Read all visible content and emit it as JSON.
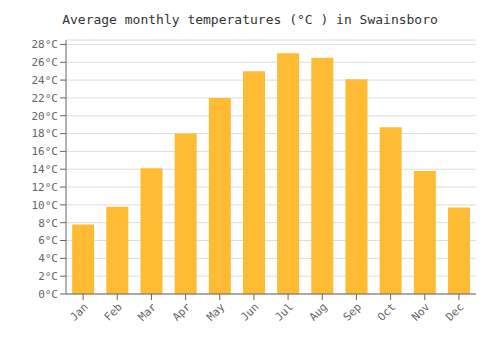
{
  "chart_data": {
    "type": "bar",
    "title": "Average monthly temperatures (°C ) in Swainsboro",
    "categories": [
      "Jan",
      "Feb",
      "Mar",
      "Apr",
      "May",
      "Jun",
      "Jul",
      "Aug",
      "Sep",
      "Oct",
      "Nov",
      "Dec"
    ],
    "values": [
      7.8,
      9.8,
      14.1,
      18.0,
      22.0,
      25.0,
      27.0,
      26.5,
      24.1,
      18.7,
      13.8,
      9.7
    ],
    "color": "#FFBB33",
    "ylim": [
      0,
      28.5
    ],
    "yticks": [
      {
        "value": 0,
        "label": "0°C"
      },
      {
        "value": 2,
        "label": "2°C"
      },
      {
        "value": 4,
        "label": "4°C"
      },
      {
        "value": 6,
        "label": "6°C"
      },
      {
        "value": 8,
        "label": "8°C"
      },
      {
        "value": 10,
        "label": "10°C"
      },
      {
        "value": 12,
        "label": "12°C"
      },
      {
        "value": 14,
        "label": "14°C"
      },
      {
        "value": 16,
        "label": "16°C"
      },
      {
        "value": 18,
        "label": "18°C"
      },
      {
        "value": 20,
        "label": "20°C"
      },
      {
        "value": 22,
        "label": "22°C"
      },
      {
        "value": 24,
        "label": "24°C"
      },
      {
        "value": 26,
        "label": "26°C"
      },
      {
        "value": 28,
        "label": "28°C"
      }
    ],
    "grid": true
  }
}
